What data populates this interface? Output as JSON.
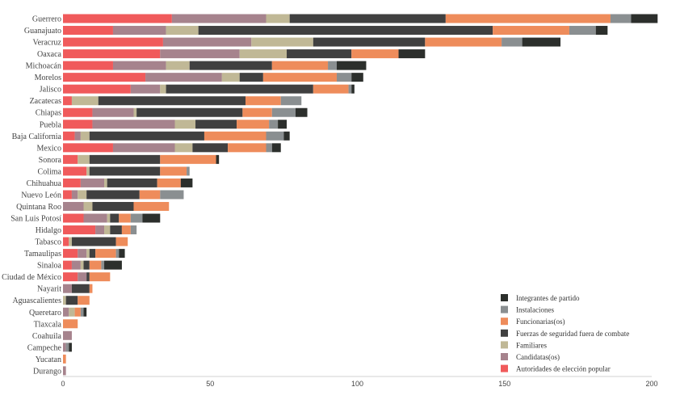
{
  "chart_data": {
    "type": "bar",
    "orientation": "horizontal",
    "stacked": true,
    "xlim": [
      0,
      200
    ],
    "x_ticks": [
      0,
      50,
      100,
      150,
      200
    ],
    "grid": false,
    "legend_position": "bottom-right",
    "categories": [
      "Guerrero",
      "Guanajuato",
      "Veracruz",
      "Oaxaca",
      "Michoacán",
      "Morelos",
      "Jalisco",
      "Zacatecas",
      "Chiapas",
      "Puebla",
      "Baja California",
      "Mexico",
      "Sonora",
      "Colima",
      "Chihuahua",
      "Nuevo León",
      "Quintana Roo",
      "San Luis Potosí",
      "Hidalgo",
      "Tabasco",
      "Tamaulipas",
      "Sinaloa",
      "Ciudad de México",
      "Nayarit",
      "Aguascalientes",
      "Queretaro",
      "Tlaxcala",
      "Coahuila",
      "Campeche",
      "Yucatan",
      "Durango"
    ],
    "series": [
      {
        "name": "Autoridades de elección popular",
        "color": "#f05a5b",
        "values": [
          37,
          17,
          34,
          33,
          17,
          28,
          23,
          3,
          10,
          10,
          4,
          17,
          5,
          8,
          6,
          3,
          0,
          7,
          11,
          2,
          5,
          3,
          5,
          0,
          0,
          0,
          0,
          0,
          0,
          0,
          0
        ]
      },
      {
        "name": "Candidatas(os)",
        "color": "#a6838d",
        "values": [
          32,
          18,
          30,
          27,
          18,
          26,
          10,
          0,
          14,
          28,
          2,
          21,
          0,
          0,
          8,
          2,
          7,
          8,
          3,
          0,
          3,
          3,
          3,
          3,
          0,
          2,
          0,
          3,
          1,
          0,
          1
        ]
      },
      {
        "name": "Familiares",
        "color": "#c0b896",
        "values": [
          8,
          11,
          21,
          16,
          8,
          6,
          2,
          9,
          1,
          7,
          3,
          6,
          4,
          1,
          1,
          3,
          3,
          1,
          2,
          1,
          1,
          1,
          0,
          0,
          1,
          2,
          0,
          0,
          0,
          0,
          0
        ]
      },
      {
        "name": "Fuerzas de seguridad fuera de combate",
        "color": "#404040",
        "values": [
          53,
          100,
          38,
          22,
          28,
          8,
          50,
          50,
          36,
          14,
          39,
          12,
          24,
          24,
          17,
          18,
          14,
          3,
          4,
          15,
          2,
          2,
          1,
          6,
          4,
          0,
          0,
          0,
          0,
          0,
          0
        ]
      },
      {
        "name": "Funcionarias(os)",
        "color": "#ee8c5b",
        "values": [
          56,
          26,
          26,
          16,
          19,
          25,
          12,
          12,
          10,
          11,
          21,
          13,
          19,
          9,
          8,
          7,
          12,
          4,
          3,
          4,
          7,
          4,
          7,
          1,
          4,
          2,
          5,
          0,
          0,
          1,
          0
        ]
      },
      {
        "name": "Instalaciones",
        "color": "#8a8f91",
        "values": [
          7,
          9,
          7,
          0,
          3,
          5,
          1,
          7,
          8,
          3,
          6,
          2,
          0,
          1,
          0,
          8,
          0,
          4,
          2,
          0,
          1,
          1,
          0,
          0,
          0,
          1,
          0,
          0,
          1,
          0,
          0
        ]
      },
      {
        "name": "Integrantes de partido",
        "color": "#2c2f2c",
        "values": [
          9,
          4,
          13,
          9,
          10,
          4,
          1,
          0,
          4,
          3,
          2,
          3,
          1,
          0,
          4,
          0,
          0,
          6,
          0,
          0,
          2,
          6,
          0,
          0,
          0,
          1,
          0,
          0,
          1,
          0,
          0
        ]
      }
    ]
  }
}
